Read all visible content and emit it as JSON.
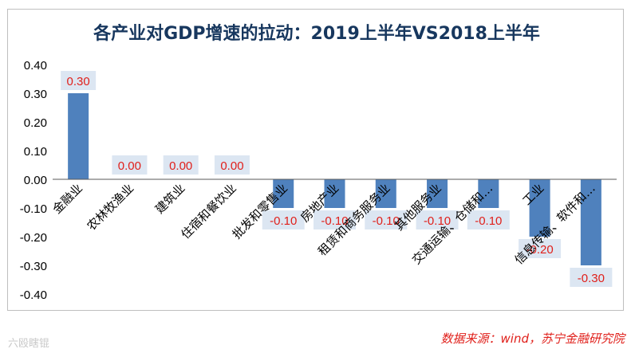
{
  "chart_data": {
    "type": "bar",
    "title": "各产业对GDP增速的拉动：2019上半年VS2018上半年",
    "categories": [
      "金融业",
      "农林牧渔业",
      "建筑业",
      "住宿和餐饮业",
      "批发和零售业",
      "房地产业",
      "租赁和商务服务业",
      "其他服务业",
      "交通运输、仓储和…",
      "工业",
      "信息传输、软件和…"
    ],
    "axis_labels": [
      "金融业",
      "农林牧渔业",
      "建筑业",
      "住宿和餐饮业",
      "批发和零售业",
      "房地产业",
      "租赁和商务服务业",
      "其他服务业",
      "交通运输、仓储和…",
      "工业",
      "信息传输、软件和…"
    ],
    "values": [
      0.3,
      0.0,
      0.0,
      0.0,
      -0.1,
      -0.1,
      -0.1,
      -0.1,
      -0.1,
      -0.2,
      -0.3
    ],
    "data_labels": [
      "0.30",
      "0.00",
      "0.00",
      "0.00",
      "-0.10",
      "-0.10",
      "-0.10",
      "-0.10",
      "-0.10",
      "-0.20",
      "-0.30"
    ],
    "ylim": [
      -0.4,
      0.4
    ],
    "yticks": [
      "0.40",
      "0.30",
      "0.20",
      "0.10",
      "0.00",
      "-0.10",
      "-0.20",
      "-0.30",
      "-0.40"
    ],
    "xlabel": "",
    "ylabel": "",
    "bar_color": "#4f81bd",
    "label_color": "#e0201b",
    "label_bg": "#dce6f2"
  },
  "source": "数据来源：wind，苏宁金融研究院",
  "watermark": "六殴瞎锟"
}
